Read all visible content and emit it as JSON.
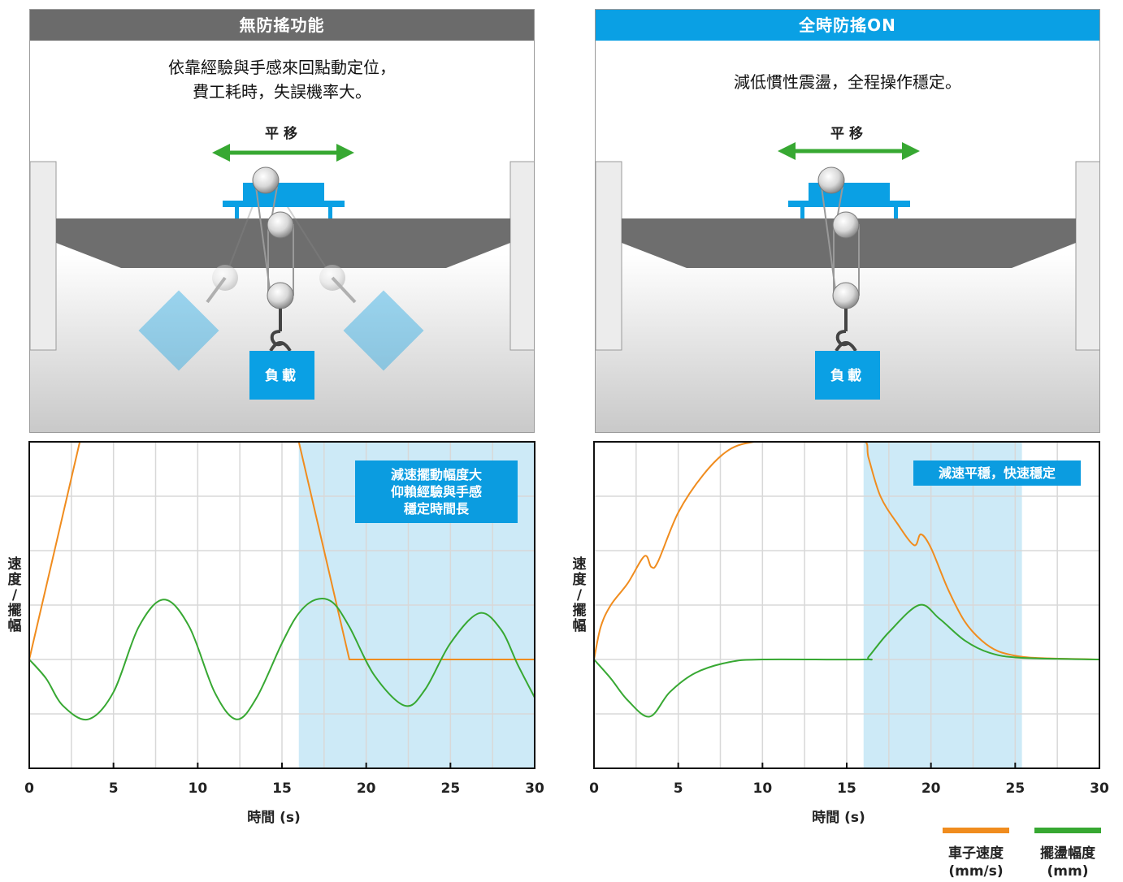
{
  "panels": {
    "left": {
      "banner": "無防搖功能",
      "desc_line1": "依靠經驗與手感來回點動定位，",
      "desc_line2": "費工耗時，失誤機率大。",
      "move_label": "平移",
      "load_label": "負載"
    },
    "right": {
      "banner": "全時防搖ON",
      "desc_line1": "減低慣性震盪，全程操作穩定。",
      "move_label": "平移",
      "load_label": "負載"
    }
  },
  "colors": {
    "gray_banner": "#6b6b6b",
    "blue": "#0aa0e4",
    "orange": "#f08c1e",
    "green": "#37a832",
    "highlight": "#cdeaf7"
  },
  "chart_data": [
    {
      "type": "line",
      "xlabel": "時間 (s)",
      "ylabel": "速度/擺幅",
      "xlim": [
        0,
        30
      ],
      "ylim": [
        -2,
        4
      ],
      "xticks": [
        0,
        5,
        10,
        15,
        20,
        25,
        30
      ],
      "grid": true,
      "highlight_x": [
        16,
        30
      ],
      "annotation_lines": [
        "減速擺動幅度大",
        "仰賴經驗與手感",
        "穩定時間長"
      ],
      "series": [
        {
          "name": "車子速度 (mm/s)",
          "color": "#f08c1e",
          "points": [
            [
              0,
              0
            ],
            [
              3,
              4
            ],
            [
              16,
              4
            ],
            [
              19,
              0
            ],
            [
              30,
              0
            ]
          ]
        },
        {
          "name": "擺盪幅度 (mm)",
          "color": "#37a832",
          "points": [
            [
              0,
              0
            ],
            [
              1,
              -0.35
            ],
            [
              2,
              -0.85
            ],
            [
              3.5,
              -1.1
            ],
            [
              5,
              -0.6
            ],
            [
              6.5,
              0.6
            ],
            [
              8,
              1.1
            ],
            [
              9.5,
              0.6
            ],
            [
              11,
              -0.6
            ],
            [
              12.3,
              -1.1
            ],
            [
              13.5,
              -0.7
            ],
            [
              15,
              0.3
            ],
            [
              16,
              0.85
            ],
            [
              17,
              1.1
            ],
            [
              18,
              1.05
            ],
            [
              19,
              0.6
            ],
            [
              20.5,
              -0.3
            ],
            [
              22.3,
              -0.85
            ],
            [
              23.5,
              -0.55
            ],
            [
              25,
              0.3
            ],
            [
              26.7,
              0.85
            ],
            [
              28,
              0.55
            ],
            [
              29,
              -0.1
            ],
            [
              30,
              -0.7
            ]
          ]
        }
      ]
    },
    {
      "type": "line",
      "xlabel": "時間 (s)",
      "ylabel": "速度/擺幅",
      "xlim": [
        0,
        30
      ],
      "ylim": [
        -2,
        4
      ],
      "xticks": [
        0,
        5,
        10,
        15,
        20,
        25,
        30
      ],
      "grid": true,
      "highlight_x": [
        16,
        25.4
      ],
      "annotation_lines": [
        "減速平穩，快速穩定"
      ],
      "series": [
        {
          "name": "車子速度 (mm/s)",
          "color": "#f08c1e",
          "points": [
            [
              0,
              0
            ],
            [
              0.4,
              0.6
            ],
            [
              1,
              1
            ],
            [
              2,
              1.4
            ],
            [
              3,
              1.9
            ],
            [
              3.4,
              1.7
            ],
            [
              3.8,
              1.8
            ],
            [
              5,
              2.7
            ],
            [
              6.5,
              3.4
            ],
            [
              8,
              3.85
            ],
            [
              9.5,
              4
            ],
            [
              11,
              4
            ],
            [
              14,
              4
            ],
            [
              16,
              4.02
            ],
            [
              16.3,
              3.7
            ],
            [
              17,
              3.0
            ],
            [
              18,
              2.5
            ],
            [
              19,
              2.1
            ],
            [
              19.4,
              2.3
            ],
            [
              20,
              2.05
            ],
            [
              21,
              1.3
            ],
            [
              22,
              0.7
            ],
            [
              23,
              0.35
            ],
            [
              24,
              0.15
            ],
            [
              25.4,
              0.05
            ],
            [
              27,
              0.02
            ],
            [
              30,
              0
            ]
          ]
        },
        {
          "name": "擺盪幅度 (mm)",
          "color": "#37a832",
          "points": [
            [
              0,
              0
            ],
            [
              1,
              -0.35
            ],
            [
              2,
              -0.75
            ],
            [
              3.3,
              -1.05
            ],
            [
              4.5,
              -0.6
            ],
            [
              6,
              -0.25
            ],
            [
              8,
              -0.05
            ],
            [
              10,
              0
            ],
            [
              16,
              0
            ],
            [
              16.3,
              0.05
            ],
            [
              17.5,
              0.5
            ],
            [
              19.3,
              1.0
            ],
            [
              20.5,
              0.75
            ],
            [
              22,
              0.35
            ],
            [
              23.5,
              0.12
            ],
            [
              25.4,
              0.03
            ],
            [
              30,
              0
            ]
          ]
        }
      ]
    }
  ]
}
